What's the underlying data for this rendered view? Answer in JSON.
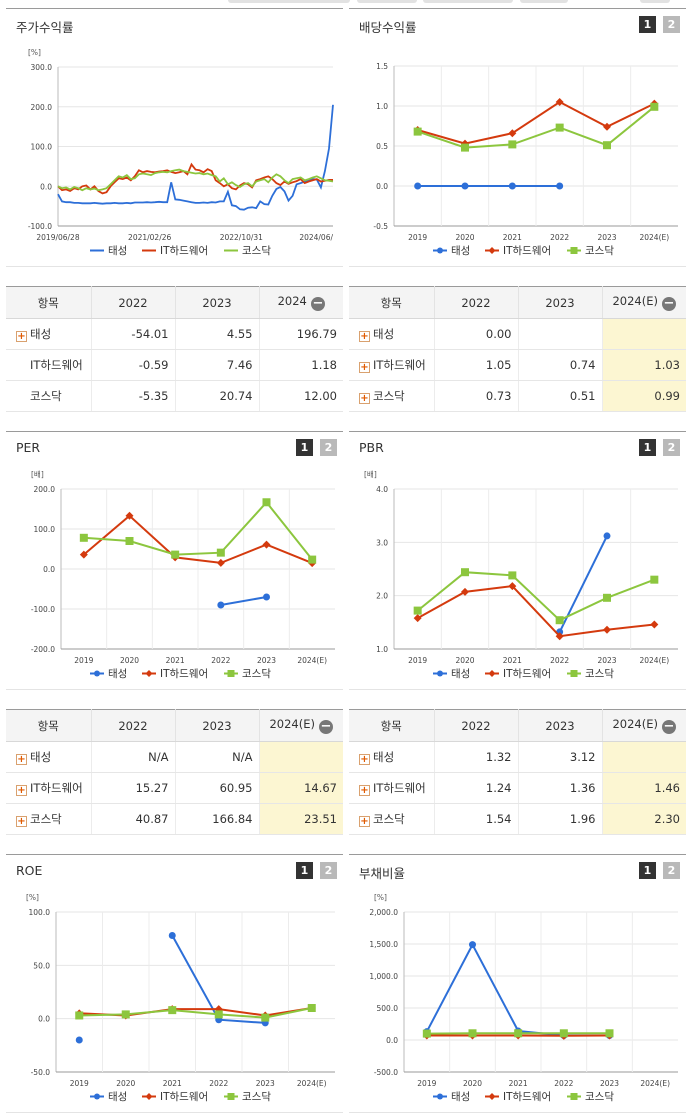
{
  "panels": {
    "stock_return": {
      "title": "주가수익률"
    },
    "dividend": {
      "title": "배당수익률"
    },
    "per": {
      "title": "PER"
    },
    "pbr": {
      "title": "PBR"
    },
    "roe": {
      "title": "ROE"
    },
    "debt": {
      "title": "부채비율"
    }
  },
  "page_buttons": {
    "one": "1",
    "two": "2"
  },
  "legend": {
    "s1": "태성",
    "s2": "IT하드웨어",
    "s3": "코스닥"
  },
  "colors": {
    "s1": "#2d6fd8",
    "s2": "#d43a0e",
    "s3": "#8cc63e"
  },
  "chart_data": [
    {
      "id": "stock_return",
      "type": "line",
      "title": "주가수익률",
      "unit": "[%]",
      "y_ticks": [
        "300.0",
        "200.0",
        "100.0",
        "0.0",
        "-100.0"
      ],
      "ylim": [
        -100,
        300
      ],
      "x_labels": [
        "2019/06/28",
        "2021/02/26",
        "2022/10/31",
        "2024/06/"
      ],
      "grid": "horizontal",
      "legend_position": "bottom",
      "series": [
        {
          "name": "태성",
          "values": [
            -20,
            -38,
            -40,
            -40,
            -42,
            -42,
            -43,
            -43,
            -43,
            -42,
            -43,
            -44,
            -43,
            -43,
            -42,
            -43,
            -43,
            -42,
            -43,
            -41,
            -41,
            -41,
            -40,
            -41,
            -40,
            -39,
            -40,
            -40,
            10,
            -33,
            -34,
            -36,
            -38,
            -40,
            -42,
            -42,
            -41,
            -42,
            -40,
            -41,
            -38,
            -38,
            -14,
            -48,
            -50,
            -58,
            -59,
            -54,
            -53,
            -55,
            -38,
            -45,
            -46,
            -24,
            -7,
            -2,
            -13,
            -36,
            -24,
            5,
            8,
            12,
            15,
            18,
            17,
            -3,
            38,
            95,
            205
          ]
        },
        {
          "name": "IT하드웨어",
          "values": [
            0,
            -10,
            -8,
            -12,
            -5,
            -8,
            0,
            2,
            -8,
            0,
            -12,
            -18,
            -15,
            0,
            10,
            20,
            18,
            22,
            15,
            25,
            40,
            35,
            38,
            36,
            35,
            37,
            38,
            40,
            36,
            33,
            35,
            38,
            30,
            55,
            42,
            40,
            35,
            43,
            38,
            15,
            8,
            0,
            5,
            -5,
            -8,
            2,
            8,
            5,
            -3,
            15,
            18,
            22,
            25,
            18,
            8,
            3,
            12,
            6,
            10,
            13,
            18,
            8,
            12,
            15,
            18,
            12,
            14,
            16,
            16
          ]
        },
        {
          "name": "코스닥",
          "values": [
            0,
            -5,
            -3,
            -8,
            -2,
            -5,
            -10,
            -5,
            -8,
            -6,
            -10,
            -8,
            -5,
            5,
            15,
            25,
            22,
            28,
            18,
            20,
            30,
            32,
            30,
            28,
            33,
            35,
            36,
            35,
            38,
            40,
            42,
            38,
            36,
            34,
            32,
            33,
            30,
            32,
            28,
            25,
            12,
            20,
            5,
            10,
            3,
            -2,
            5,
            8,
            0,
            12,
            15,
            18,
            10,
            22,
            30,
            25,
            15,
            8,
            18,
            20,
            22,
            15,
            18,
            22,
            25,
            20,
            15,
            14,
            12
          ]
        }
      ]
    },
    {
      "id": "dividend",
      "type": "line",
      "title": "배당수익률",
      "y_ticks": [
        "1.5",
        "1.0",
        "0.5",
        "0.0",
        "-0.5"
      ],
      "ylim": [
        -0.5,
        1.5
      ],
      "categories": [
        "2019",
        "2020",
        "2021",
        "2022",
        "2023",
        "2024(E)"
      ],
      "grid": "both",
      "legend_position": "bottom",
      "series": [
        {
          "name": "태성",
          "values": [
            0.0,
            0.0,
            0.0,
            0.0,
            null,
            null
          ]
        },
        {
          "name": "IT하드웨어",
          "values": [
            0.7,
            0.53,
            0.66,
            1.05,
            0.74,
            1.03
          ]
        },
        {
          "name": "코스닥",
          "values": [
            0.68,
            0.48,
            0.52,
            0.73,
            0.51,
            0.99
          ]
        }
      ]
    },
    {
      "id": "per",
      "type": "line",
      "title": "PER",
      "unit": "[배]",
      "y_ticks": [
        "200.0",
        "100.0",
        "0.0",
        "-100.0",
        "-200.0"
      ],
      "ylim": [
        -200,
        200
      ],
      "categories": [
        "2019",
        "2020",
        "2021",
        "2022",
        "2023",
        "2024(E)"
      ],
      "grid": "both",
      "legend_position": "bottom",
      "series": [
        {
          "name": "태성",
          "values": [
            null,
            null,
            null,
            -90,
            -70,
            null
          ]
        },
        {
          "name": "IT하드웨어",
          "values": [
            36,
            133,
            29,
            15.27,
            60.95,
            14.67
          ]
        },
        {
          "name": "코스닥",
          "values": [
            78,
            70,
            36,
            40.87,
            166.84,
            23.51
          ]
        }
      ]
    },
    {
      "id": "pbr",
      "type": "line",
      "title": "PBR",
      "unit": "[배]",
      "y_ticks": [
        "4.0",
        "3.0",
        "2.0",
        "1.0"
      ],
      "ylim": [
        1,
        4
      ],
      "categories": [
        "2019",
        "2020",
        "2021",
        "2022",
        "2023",
        "2024(E)"
      ],
      "grid": "both",
      "legend_position": "bottom",
      "series": [
        {
          "name": "태성",
          "values": [
            null,
            null,
            null,
            1.32,
            3.12,
            null
          ]
        },
        {
          "name": "IT하드웨어",
          "values": [
            1.58,
            2.07,
            2.18,
            1.24,
            1.36,
            1.46
          ]
        },
        {
          "name": "코스닥",
          "values": [
            1.72,
            2.44,
            2.38,
            1.54,
            1.96,
            2.3
          ]
        }
      ]
    },
    {
      "id": "roe",
      "type": "line",
      "title": "ROE",
      "unit": "[%]",
      "y_ticks": [
        "100.0",
        "50.0",
        "0.0",
        "-50.0"
      ],
      "ylim": [
        -50,
        100
      ],
      "categories": [
        "2019",
        "2020",
        "2021",
        "2022",
        "2023",
        "2024(E)"
      ],
      "grid": "both",
      "legend_position": "bottom",
      "series": [
        {
          "name": "태성",
          "values": [
            -20,
            null,
            78,
            -1,
            -4,
            null
          ]
        },
        {
          "name": "IT하드웨어",
          "values": [
            5,
            3,
            9,
            9,
            3,
            10
          ]
        },
        {
          "name": "코스닥",
          "values": [
            3,
            4,
            8,
            4,
            1,
            10
          ]
        }
      ]
    },
    {
      "id": "debt",
      "type": "line",
      "title": "부채비율",
      "unit": "[%]",
      "y_ticks": [
        "2,000.0",
        "1,500.0",
        "1,000.0",
        "500.0",
        "0.0",
        "-500.0"
      ],
      "ylim": [
        -500,
        2000
      ],
      "categories": [
        "2019",
        "2020",
        "2021",
        "2022",
        "2023",
        "2024(E)"
      ],
      "grid": "both",
      "legend_position": "bottom",
      "series": [
        {
          "name": "태성",
          "values": [
            130,
            1490,
            140,
            70,
            70,
            null
          ]
        },
        {
          "name": "IT하드웨어",
          "values": [
            70,
            70,
            70,
            65,
            70,
            null
          ]
        },
        {
          "name": "코스닥",
          "values": [
            100,
            105,
            105,
            105,
            105,
            null
          ]
        }
      ]
    }
  ],
  "tables": {
    "stock_return": {
      "headers": [
        "항목",
        "2022",
        "2023",
        "2024"
      ],
      "rows": [
        {
          "name": "태성",
          "v": [
            "-54.01",
            "4.55",
            "196.79"
          ]
        },
        {
          "name": "IT하드웨어",
          "v": [
            "-0.59",
            "7.46",
            "1.18"
          ]
        },
        {
          "name": "코스닥",
          "v": [
            "-5.35",
            "20.74",
            "12.00"
          ]
        }
      ]
    },
    "dividend": {
      "headers": [
        "항목",
        "2022",
        "2023",
        "2024(E)"
      ],
      "rows": [
        {
          "name": "태성",
          "v": [
            "0.00",
            "",
            ""
          ]
        },
        {
          "name": "IT하드웨어",
          "v": [
            "1.05",
            "0.74",
            "1.03"
          ]
        },
        {
          "name": "코스닥",
          "v": [
            "0.73",
            "0.51",
            "0.99"
          ]
        }
      ]
    },
    "per": {
      "headers": [
        "항목",
        "2022",
        "2023",
        "2024(E)"
      ],
      "rows": [
        {
          "name": "태성",
          "v": [
            "N/A",
            "N/A",
            ""
          ]
        },
        {
          "name": "IT하드웨어",
          "v": [
            "15.27",
            "60.95",
            "14.67"
          ]
        },
        {
          "name": "코스닥",
          "v": [
            "40.87",
            "166.84",
            "23.51"
          ]
        }
      ]
    },
    "pbr": {
      "headers": [
        "항목",
        "2022",
        "2023",
        "2024(E)"
      ],
      "rows": [
        {
          "name": "태성",
          "v": [
            "1.32",
            "3.12",
            ""
          ]
        },
        {
          "name": "IT하드웨어",
          "v": [
            "1.24",
            "1.36",
            "1.46"
          ]
        },
        {
          "name": "코스닥",
          "v": [
            "1.54",
            "1.96",
            "2.30"
          ]
        }
      ]
    }
  }
}
